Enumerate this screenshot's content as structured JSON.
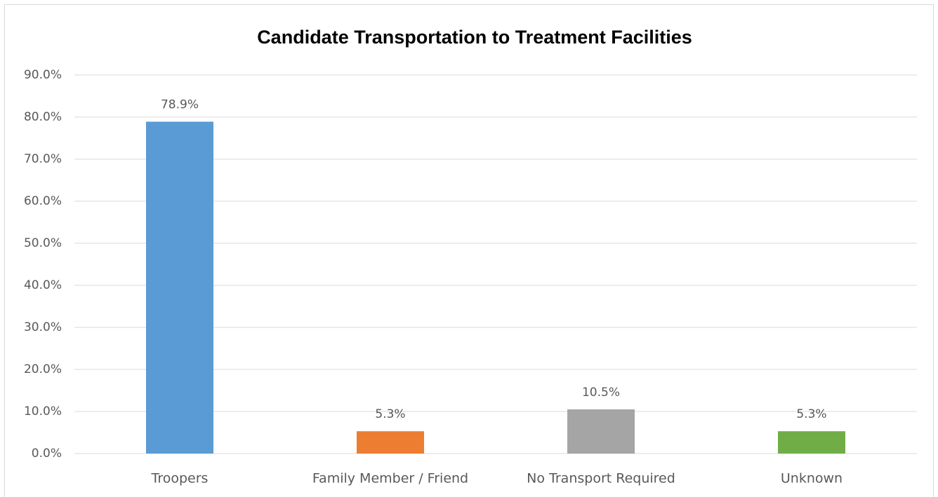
{
  "chart_data": {
    "type": "bar",
    "title": "Candidate Transportation to Treatment Facilities",
    "categories": [
      "Troopers",
      "Family Member / Friend",
      "No Transport Required",
      "Unknown"
    ],
    "values": [
      78.9,
      5.3,
      10.5,
      5.3
    ],
    "value_labels": [
      "78.9%",
      "5.3%",
      "10.5%",
      "5.3%"
    ],
    "colors": [
      "#5b9bd5",
      "#ed7d31",
      "#a5a5a5",
      "#70ad47"
    ],
    "ylim": [
      0,
      90
    ],
    "yticks": [
      {
        "value": 0,
        "label": "0.0%"
      },
      {
        "value": 10,
        "label": "10.0%"
      },
      {
        "value": 20,
        "label": "20.0%"
      },
      {
        "value": 30,
        "label": "30.0%"
      },
      {
        "value": 40,
        "label": "40.0%"
      },
      {
        "value": 50,
        "label": "50.0%"
      },
      {
        "value": 60,
        "label": "60.0%"
      },
      {
        "value": 70,
        "label": "70.0%"
      },
      {
        "value": 80,
        "label": "80.0%"
      },
      {
        "value": 90,
        "label": "90.0%"
      }
    ],
    "grid": true
  }
}
